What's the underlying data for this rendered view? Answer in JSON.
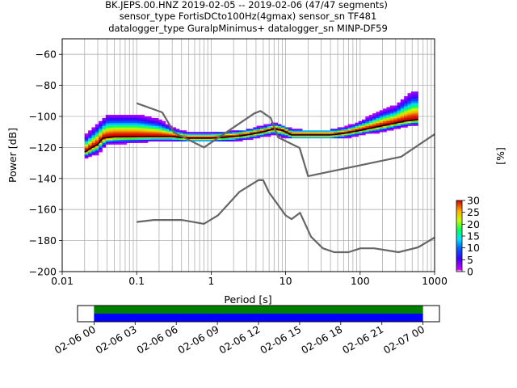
{
  "title_lines": [
    "BK.JEPS.00.HNZ   2019-02-05 -- 2019-02-06  (47/47 segments)",
    "sensor_type FortisDCto100Hz(4gmax) sensor_sn TF481",
    "datalogger_type GuralpMinimus+ datalogger_sn MINP-DF59"
  ],
  "chart_data": [
    {
      "type": "heatmap",
      "title": "BK.JEPS.00.HNZ   2019-02-05 -- 2019-02-06  (47/47 segments)",
      "xlabel": "Period [s]",
      "ylabel": "Power [dB]",
      "xscale": "log",
      "xlim": [
        0.01,
        1000
      ],
      "ylim": [
        -200,
        -50
      ],
      "xticks": [
        0.01,
        0.1,
        1,
        10,
        100,
        1000
      ],
      "xtick_labels": [
        "0.01",
        "0.1",
        "1",
        "10",
        "100",
        "1000"
      ],
      "yticks": [
        -200,
        -180,
        -160,
        -140,
        -120,
        -100,
        -80,
        -60
      ],
      "ytick_labels": [
        "−200",
        "−180",
        "−160",
        "−140",
        "−120",
        "−100",
        "−80",
        "−60"
      ],
      "grid": true,
      "colorbar": {
        "label": "[%]",
        "range": [
          0,
          30
        ],
        "ticks": [
          0,
          5,
          10,
          15,
          20,
          25,
          30
        ],
        "tick_labels": [
          "0",
          "5",
          "10",
          "15",
          "20",
          "25",
          "30"
        ]
      },
      "noise_models": [
        {
          "name": "NHNM",
          "points": [
            [
              0.1,
              -91.5
            ],
            [
              0.22,
              -97.4
            ],
            [
              0.32,
              -110.5
            ],
            [
              0.8,
              -120
            ],
            [
              3.8,
              -98
            ],
            [
              4.6,
              -96.5
            ],
            [
              6.3,
              -101
            ],
            [
              7.9,
              -113.5
            ],
            [
              15.4,
              -120.3
            ],
            [
              20,
              -138.5
            ],
            [
              354.8,
              -126
            ],
            [
              1000,
              -111.5
            ]
          ]
        },
        {
          "name": "NLNM",
          "points": [
            [
              0.1,
              -168
            ],
            [
              0.17,
              -166.7
            ],
            [
              0.4,
              -166.7
            ],
            [
              0.8,
              -169.2
            ],
            [
              1.24,
              -163.7
            ],
            [
              2.4,
              -148.6
            ],
            [
              4.3,
              -141.1
            ],
            [
              5,
              -141.1
            ],
            [
              6,
              -149
            ],
            [
              10,
              -163.8
            ],
            [
              12,
              -166.2
            ],
            [
              15.6,
              -162.1
            ],
            [
              21.9,
              -177.5
            ],
            [
              31.6,
              -185
            ],
            [
              45,
              -187.5
            ],
            [
              70,
              -187.5
            ],
            [
              101,
              -185
            ],
            [
              154,
              -185
            ],
            [
              328,
              -187.5
            ],
            [
              600,
              -184.4
            ],
            [
              1000,
              -178
            ]
          ]
        }
      ],
      "psd_mode": {
        "period": [
          0.02,
          0.025,
          0.03,
          0.035,
          0.05,
          0.1,
          0.2,
          0.3,
          0.5,
          1,
          2,
          3,
          5,
          7,
          9,
          12,
          20,
          40,
          60,
          100,
          200,
          400,
          600
        ],
        "power": [
          -123,
          -120,
          -118,
          -114,
          -113,
          -113,
          -113,
          -113,
          -114,
          -114,
          -113,
          -112,
          -110,
          -108,
          -109,
          -112,
          -112,
          -112,
          -111,
          -109,
          -106,
          -103,
          -102
        ]
      },
      "psd_spread": {
        "period": [
          0.02,
          0.03,
          0.04,
          0.1,
          0.2,
          0.3,
          0.5,
          1,
          3,
          5,
          7,
          10,
          20,
          40,
          60,
          100,
          200,
          300,
          500,
          600
        ],
        "upper": [
          -114,
          -106,
          -100,
          -100,
          -103,
          -108,
          -111,
          -112,
          -110,
          -107,
          -105,
          -108,
          -111,
          -110,
          -108,
          -104,
          -97,
          -94,
          -85,
          -85
        ],
        "lower": [
          -127,
          -124,
          -118,
          -117,
          -116,
          -116,
          -116,
          -116,
          -115,
          -113,
          -112,
          -114,
          -114,
          -114,
          -114,
          -112,
          -110,
          -108,
          -106,
          -106
        ]
      }
    },
    {
      "type": "timeline",
      "xtick_labels": [
        "02-06 00",
        "02-06 03",
        "02-06 06",
        "02-06 09",
        "02-06 12",
        "02-06 15",
        "02-06 18",
        "02-06 21",
        "02-07 00"
      ],
      "xticks_hours": [
        0,
        3,
        6,
        9,
        12,
        15,
        18,
        21,
        24
      ],
      "xlim_hours": [
        -1.2,
        25.2
      ],
      "bars": [
        {
          "color": "#008000",
          "start_hours": 0,
          "end_hours": 24
        },
        {
          "color": "#0000ff",
          "start_hours": 0,
          "end_hours": 24
        }
      ]
    }
  ],
  "colors": {
    "noise_model": "#666666",
    "grid": "#b0b0b0",
    "mode_line": "#000000",
    "bar_top": "#008000",
    "bar_bottom": "#0000ff"
  }
}
